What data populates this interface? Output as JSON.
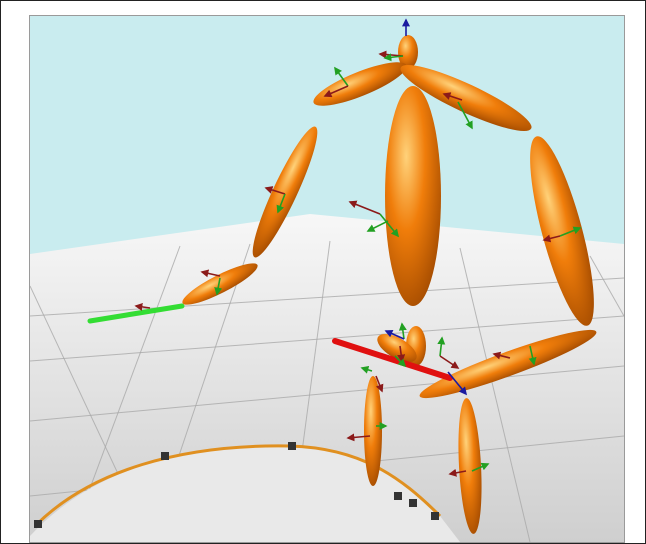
{
  "scene": {
    "type": "3d-skeleton-viewport",
    "background_sky": "#c9ecef",
    "floor_color_far": "#f7f7f7",
    "floor_color_near": "#cfcfcf",
    "grid_color": "#a9a9a9",
    "body_color": "#f07d0a",
    "body_highlight": "#ffd27a",
    "body_shadow": "#a24a00",
    "axis_colors": {
      "x": "#8b1a1a",
      "y": "#22a022",
      "z": "#1a1aa0"
    },
    "selected_bone_x_color": "#e01010",
    "selected_bone_y_color": "#33dd33",
    "disc_color": "#e9e9e9",
    "disc_rim": "#e09020",
    "icons": [
      "bone-ellipsoid",
      "joint-axis-triad",
      "rotation-disc-gizmo"
    ]
  }
}
